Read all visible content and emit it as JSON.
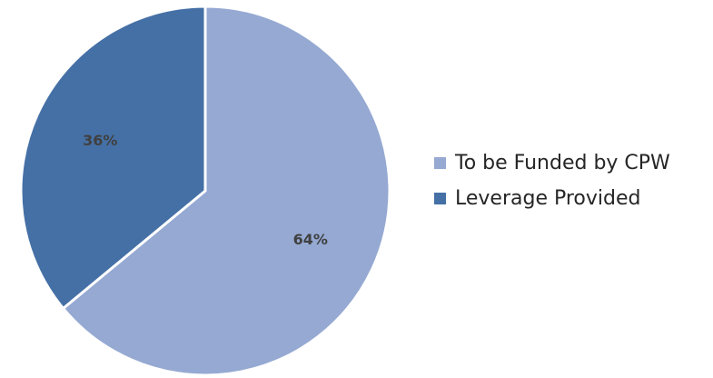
{
  "chart_data": {
    "type": "pie",
    "slices": [
      {
        "name": "To be Funded by CPW",
        "value": 64,
        "label": "64%",
        "color": "#95a9d2"
      },
      {
        "name": "Leverage Provided",
        "value": 36,
        "label": "36%",
        "color": "#4570a6"
      }
    ],
    "legend_position": "right",
    "border_color": "#ffffff"
  }
}
